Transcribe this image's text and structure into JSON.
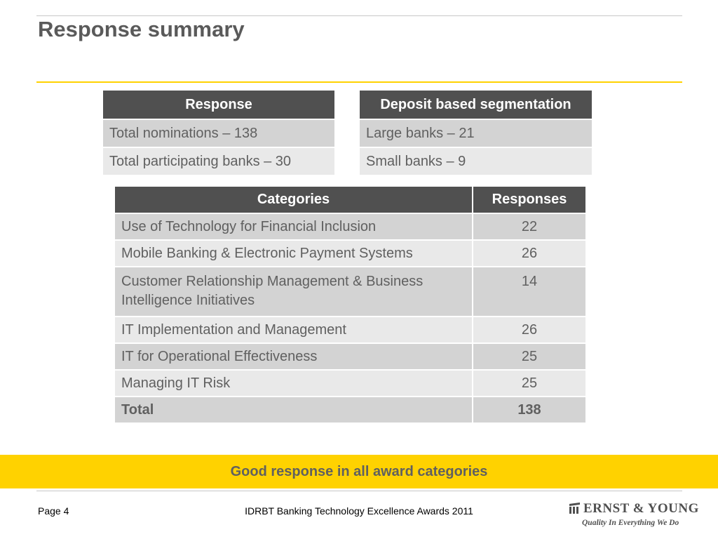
{
  "slide": {
    "title": "Response summary"
  },
  "response_table": {
    "header": "Response",
    "rows": [
      "Total nominations – 138",
      "Total participating banks – 30"
    ]
  },
  "segmentation_table": {
    "header": "Deposit based segmentation",
    "rows": [
      "Large banks – 21",
      "Small banks – 9"
    ]
  },
  "categories_table": {
    "headers": [
      "Categories",
      "Responses"
    ],
    "rows": [
      {
        "category": "Use of Technology for Financial Inclusion",
        "responses": "22"
      },
      {
        "category": "Mobile Banking & Electronic Payment Systems",
        "responses": "26"
      },
      {
        "category": "Customer Relationship Management & Business Intelligence Initiatives",
        "responses": "14"
      },
      {
        "category": "IT Implementation and Management",
        "responses": "26"
      },
      {
        "category": "IT for Operational Effectiveness",
        "responses": "25"
      },
      {
        "category": "Managing IT Risk",
        "responses": "25"
      }
    ],
    "total": {
      "label": "Total",
      "value": "138"
    }
  },
  "banner": {
    "text": "Good response in all award categories"
  },
  "footer": {
    "page": "Page 4",
    "center": "IDRBT Banking Technology Excellence Awards 2011",
    "logo_name": "ERNST & YOUNG",
    "logo_tagline": "Quality In Everything We Do"
  },
  "colors": {
    "accent": "#ffd200",
    "header_bg": "#505050",
    "row_dark": "#d3d3d3",
    "row_light": "#e9e9e9",
    "text": "#606060"
  }
}
